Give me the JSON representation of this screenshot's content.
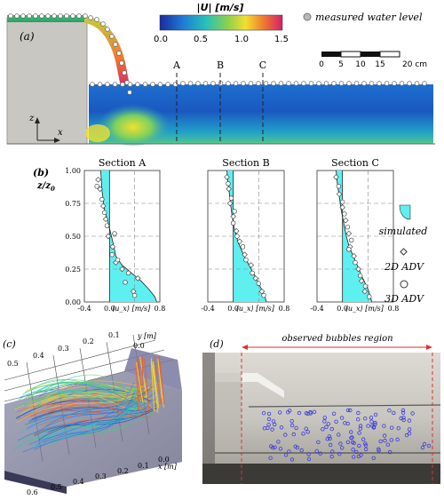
{
  "panel_a": {
    "label": "(a)",
    "colorbar": {
      "title": "|U| [m/s]",
      "ticks": [
        "0.0",
        "0.5",
        "1.0",
        "1.5"
      ]
    },
    "legend_text": "measured water level",
    "scale_ticks": [
      "0",
      "5",
      "10",
      "15",
      "20 cm"
    ],
    "section_labels": [
      "A",
      "B",
      "C"
    ],
    "axis_z": "z",
    "axis_x": "x"
  },
  "panel_b": {
    "label": "(b)",
    "ylabel": "z/z",
    "ylabel_sub": "0",
    "legend": {
      "simulated": "simulated",
      "adv2d": "2D ADV",
      "adv3d": "3D ADV"
    }
  },
  "panel_c": {
    "label": "(c)",
    "axis_x_title": "x [m]",
    "axis_y_title": "y [m]",
    "ticks_y_left": [
      "0.5",
      "0.4",
      "0.3",
      "0.2",
      "0.1",
      "0.0"
    ],
    "ticks_x_bottom": [
      "0.6",
      "0.5",
      "0.4",
      "0.3",
      "0.2",
      "0.1",
      "0.0"
    ]
  },
  "panel_d": {
    "label": "(d)",
    "bubbles_label": "observed bubbles region"
  },
  "chart_data": [
    {
      "type": "line",
      "title": "Section A",
      "xlabel": "⟨u_x⟩ [m/s]",
      "ylabel": "z/z0",
      "xlim": [
        -0.4,
        0.8
      ],
      "ylim": [
        0,
        1
      ],
      "x_ticks": [
        "-0.4",
        "0.0",
        "0.4",
        "0.8"
      ],
      "y_ticks": [
        "0.00",
        "0.25",
        "0.50",
        "0.75",
        "1.00"
      ],
      "simulated": [
        [
          -0.14,
          1.0
        ],
        [
          -0.13,
          0.93
        ],
        [
          -0.12,
          0.85
        ],
        [
          -0.08,
          0.7
        ],
        [
          -0.02,
          0.6
        ],
        [
          0.03,
          0.5
        ],
        [
          0.07,
          0.42
        ],
        [
          0.1,
          0.35
        ],
        [
          0.2,
          0.28
        ],
        [
          0.35,
          0.22
        ],
        [
          0.5,
          0.16
        ],
        [
          0.62,
          0.1
        ],
        [
          0.72,
          0.04
        ],
        [
          0.75,
          0.0
        ]
      ],
      "adv_2d": [
        [
          -0.18,
          0.93
        ],
        [
          -0.15,
          0.86
        ],
        [
          -0.1,
          0.73
        ],
        [
          -0.06,
          0.63
        ],
        [
          -0.02,
          0.5
        ],
        [
          0.05,
          0.42
        ],
        [
          0.1,
          0.3
        ],
        [
          0.2,
          0.25
        ],
        [
          0.45,
          0.18
        ],
        [
          0.38,
          0.08
        ]
      ],
      "adv_3d": [
        [
          -0.2,
          0.88
        ],
        [
          -0.12,
          0.78
        ],
        [
          -0.08,
          0.68
        ],
        [
          -0.04,
          0.58
        ],
        [
          0.08,
          0.52
        ],
        [
          0.04,
          0.36
        ],
        [
          0.13,
          0.32
        ],
        [
          0.3,
          0.22
        ],
        [
          0.25,
          0.15
        ],
        [
          0.4,
          0.05
        ]
      ]
    },
    {
      "type": "line",
      "title": "Section B",
      "xlabel": "⟨u_x⟩ [m/s]",
      "ylabel": "z/z0",
      "xlim": [
        -0.4,
        0.8
      ],
      "ylim": [
        0,
        1
      ],
      "x_ticks": [
        "-0.4",
        "0.0",
        "0.4",
        "0.8"
      ],
      "y_ticks": [
        "0.00",
        "0.25",
        "0.50",
        "0.75",
        "1.00"
      ],
      "simulated": [
        [
          -0.1,
          1.0
        ],
        [
          -0.08,
          0.9
        ],
        [
          -0.05,
          0.78
        ],
        [
          -0.02,
          0.66
        ],
        [
          0.02,
          0.55
        ],
        [
          0.08,
          0.45
        ],
        [
          0.16,
          0.36
        ],
        [
          0.26,
          0.27
        ],
        [
          0.36,
          0.18
        ],
        [
          0.44,
          0.1
        ],
        [
          0.5,
          0.04
        ],
        [
          0.52,
          0.0
        ]
      ],
      "adv_2d": [
        [
          -0.1,
          0.95
        ],
        [
          -0.07,
          0.86
        ],
        [
          -0.05,
          0.75
        ],
        [
          0.0,
          0.65
        ],
        [
          0.05,
          0.54
        ],
        [
          0.1,
          0.46
        ],
        [
          0.18,
          0.36
        ],
        [
          0.28,
          0.28
        ],
        [
          0.35,
          0.18
        ],
        [
          0.45,
          0.08
        ]
      ],
      "adv_3d": [
        [
          -0.08,
          0.9
        ],
        [
          -0.03,
          0.79
        ],
        [
          0.02,
          0.69
        ],
        [
          0.0,
          0.6
        ],
        [
          0.06,
          0.5
        ],
        [
          0.15,
          0.42
        ],
        [
          0.2,
          0.32
        ],
        [
          0.3,
          0.22
        ],
        [
          0.4,
          0.14
        ],
        [
          0.48,
          0.05
        ]
      ]
    },
    {
      "type": "line",
      "title": "Section C",
      "xlabel": "⟨u_x⟩ [m/s]",
      "ylabel": "z/z0",
      "xlim": [
        -0.4,
        0.8
      ],
      "ylim": [
        0,
        1
      ],
      "x_ticks": [
        "-0.4",
        "0.0",
        "0.4",
        "0.8"
      ],
      "y_ticks": [
        "0.00",
        "0.25",
        "0.50",
        "0.75",
        "1.00"
      ],
      "simulated": [
        [
          -0.1,
          1.0
        ],
        [
          -0.08,
          0.9
        ],
        [
          -0.05,
          0.8
        ],
        [
          -0.02,
          0.7
        ],
        [
          0.02,
          0.6
        ],
        [
          0.06,
          0.5
        ],
        [
          0.1,
          0.43
        ],
        [
          0.16,
          0.36
        ],
        [
          0.24,
          0.27
        ],
        [
          0.32,
          0.18
        ],
        [
          0.4,
          0.1
        ],
        [
          0.44,
          0.04
        ],
        [
          0.46,
          0.0
        ]
      ],
      "adv_2d": [
        [
          -0.1,
          0.95
        ],
        [
          -0.05,
          0.82
        ],
        [
          0.0,
          0.72
        ],
        [
          0.05,
          0.62
        ],
        [
          0.1,
          0.52
        ],
        [
          0.12,
          0.42
        ],
        [
          0.18,
          0.35
        ],
        [
          0.25,
          0.25
        ],
        [
          0.3,
          0.16
        ],
        [
          0.35,
          0.08
        ]
      ],
      "adv_3d": [
        [
          -0.06,
          0.88
        ],
        [
          0.0,
          0.76
        ],
        [
          0.03,
          0.67
        ],
        [
          0.08,
          0.57
        ],
        [
          0.14,
          0.47
        ],
        [
          0.1,
          0.4
        ],
        [
          0.2,
          0.3
        ],
        [
          0.28,
          0.2
        ],
        [
          0.36,
          0.12
        ],
        [
          0.42,
          0.04
        ]
      ]
    }
  ]
}
